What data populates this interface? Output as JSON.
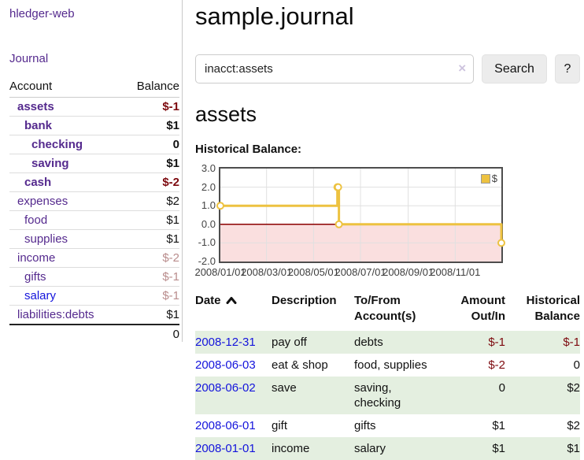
{
  "sidebar": {
    "brand": "hledger-web",
    "nav": {
      "journal": "Journal"
    },
    "accounts_table": {
      "headers": {
        "account": "Account",
        "balance": "Balance"
      },
      "rows": [
        {
          "account": "assets",
          "balance": "$-1",
          "level": 1,
          "bold": true,
          "link_color": "purple",
          "balance_class": "neg"
        },
        {
          "account": "bank",
          "balance": "$1",
          "level": 2,
          "bold": true,
          "link_color": "purple",
          "balance_class": ""
        },
        {
          "account": "checking",
          "balance": "0",
          "level": 3,
          "bold": true,
          "link_color": "purple",
          "balance_class": ""
        },
        {
          "account": "saving",
          "balance": "$1",
          "level": 3,
          "bold": true,
          "link_color": "purple",
          "balance_class": ""
        },
        {
          "account": "cash",
          "balance": "$-2",
          "level": 2,
          "bold": true,
          "link_color": "purple",
          "balance_class": "neg"
        },
        {
          "account": "expenses",
          "balance": "$2",
          "level": 1,
          "bold": false,
          "link_color": "purple",
          "balance_class": ""
        },
        {
          "account": "food",
          "balance": "$1",
          "level": 2,
          "bold": false,
          "link_color": "purple",
          "balance_class": ""
        },
        {
          "account": "supplies",
          "balance": "$1",
          "level": 2,
          "bold": false,
          "link_color": "purple",
          "balance_class": ""
        },
        {
          "account": "income",
          "balance": "$-2",
          "level": 1,
          "bold": false,
          "link_color": "purple",
          "balance_class": "negdim"
        },
        {
          "account": "gifts",
          "balance": "$-1",
          "level": 2,
          "bold": false,
          "link_color": "purple",
          "balance_class": "negdim"
        },
        {
          "account": "salary",
          "balance": "$-1",
          "level": 2,
          "bold": false,
          "link_color": "blue",
          "balance_class": "negdim"
        },
        {
          "account": "liabilities:debts",
          "balance": "$1",
          "level": 1,
          "bold": false,
          "link_color": "purple",
          "balance_class": ""
        }
      ],
      "total": "0"
    }
  },
  "main": {
    "title": "sample.journal",
    "search": {
      "value": "inacct:assets",
      "clear_icon": "×",
      "button_label": "Search",
      "help_label": "?"
    },
    "account_heading": "assets",
    "chart_label": "Historical Balance:",
    "register": {
      "headers": [
        "Date",
        "Description",
        "To/From Account(s)",
        "Amount Out/In",
        "Historical Balance"
      ],
      "rows": [
        {
          "date": "2008-12-31",
          "description": "pay off",
          "accounts": "debts",
          "amount": "$-1",
          "balance": "$-1",
          "amount_neg": true,
          "balance_neg": true,
          "shaded": true
        },
        {
          "date": "2008-06-03",
          "description": "eat & shop",
          "accounts": "food, supplies",
          "amount": "$-2",
          "balance": "0",
          "amount_neg": true,
          "balance_neg": false,
          "shaded": false
        },
        {
          "date": "2008-06-02",
          "description": "save",
          "accounts": "saving, checking",
          "amount": "0",
          "balance": "$2",
          "amount_neg": false,
          "balance_neg": false,
          "shaded": true
        },
        {
          "date": "2008-06-01",
          "description": "gift",
          "accounts": "gifts",
          "amount": "$1",
          "balance": "$2",
          "amount_neg": false,
          "balance_neg": false,
          "shaded": false
        },
        {
          "date": "2008-01-01",
          "description": "income",
          "accounts": "salary",
          "amount": "$1",
          "balance": "$1",
          "amount_neg": false,
          "balance_neg": false,
          "shaded": true
        }
      ]
    }
  },
  "chart_data": {
    "type": "line",
    "title": "Historical Balance:",
    "series": [
      {
        "name": "$",
        "color": "#edc240",
        "step": true,
        "points": [
          [
            "2008-01-01",
            1
          ],
          [
            "2008-06-01",
            2
          ],
          [
            "2008-06-02",
            2
          ],
          [
            "2008-06-03",
            0
          ],
          [
            "2008-12-31",
            -1
          ]
        ]
      }
    ],
    "x_range": [
      "2008-01-01",
      "2008-12-31"
    ],
    "x_ticks": [
      "2008/01/01",
      "2008/03/01",
      "2008/05/01",
      "2008/07/01",
      "2008/09/01",
      "2008/11/01"
    ],
    "y_ticks": [
      "3.0",
      "2.0",
      "1.0",
      "0.0",
      "-1.0",
      "-2.0"
    ],
    "ylim": [
      -2,
      3
    ],
    "grid": true,
    "legend": {
      "label": "$",
      "position": "top-right"
    },
    "negative_region_fill": "#fadfdf",
    "zero_line_color": "#8b0000",
    "grid_color": "#e0e0e0",
    "border_color": "#4d4d4d"
  },
  "colors": {
    "link_purple": "#552a8e",
    "link_blue": "#1414dc",
    "negative": "#7d0a0f",
    "negative_dim": "#b98c8c",
    "row_stripe_green": "#e4efe0"
  }
}
